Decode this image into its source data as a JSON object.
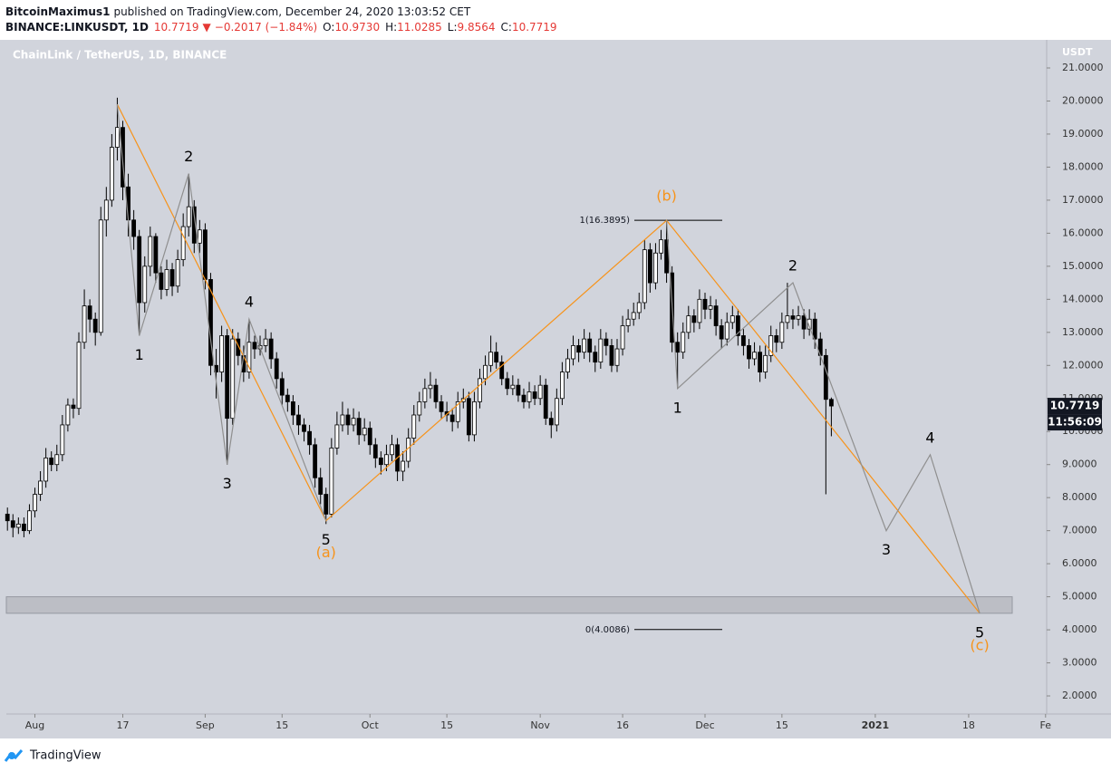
{
  "header": {
    "author": "BitcoinMaximus1",
    "published": "published on TradingView.com, December 24, 2020 13:03:52 CET",
    "symbol": "BINANCE:LINKUSDT, 1D",
    "last": "10.7719",
    "arrow": "▼",
    "change": "−0.2017 (−1.84%)",
    "ohlc": [
      {
        "label": "O:",
        "value": "10.9730"
      },
      {
        "label": "H:",
        "value": "11.0285"
      },
      {
        "label": "L:",
        "value": "9.8564"
      },
      {
        "label": "C:",
        "value": "10.7719"
      }
    ]
  },
  "footer": {
    "brand": "TradingView"
  },
  "chart_data": {
    "type": "candlestick",
    "title": "ChainLink / TetherUS, 1D, BINANCE",
    "y_axis_label": "USDT",
    "grid": false,
    "up_color": "#ffffff",
    "down_color": "#000000",
    "background": "#d1d4dc",
    "xlim": [
      -0.2,
      189.2
    ],
    "ylim": [
      1.48,
      21.85
    ],
    "xticks": [
      {
        "value": 5,
        "label": "Aug"
      },
      {
        "value": 21,
        "label": "17"
      },
      {
        "value": 36,
        "label": "Sep"
      },
      {
        "value": 50,
        "label": "15"
      },
      {
        "value": 66,
        "label": "Oct"
      },
      {
        "value": 80,
        "label": "15"
      },
      {
        "value": 97,
        "label": "Nov"
      },
      {
        "value": 112,
        "label": "16"
      },
      {
        "value": 127,
        "label": "Dec"
      },
      {
        "value": 141,
        "label": "15"
      },
      {
        "value": 158,
        "label": "2021"
      },
      {
        "value": 175,
        "label": "18"
      },
      {
        "value": 189,
        "label": "Fe"
      }
    ],
    "yticks": [
      {
        "value": 21,
        "label": "21.0000"
      },
      {
        "value": 20,
        "label": "20.0000"
      },
      {
        "value": 19,
        "label": "19.0000"
      },
      {
        "value": 18,
        "label": "18.0000"
      },
      {
        "value": 17,
        "label": "17.0000"
      },
      {
        "value": 16,
        "label": "16.0000"
      },
      {
        "value": 15,
        "label": "15.0000"
      },
      {
        "value": 14,
        "label": "14.0000"
      },
      {
        "value": 13,
        "label": "13.0000"
      },
      {
        "value": 12,
        "label": "12.0000"
      },
      {
        "value": 11,
        "label": "11.0000"
      },
      {
        "value": 10,
        "label": "10.0000"
      },
      {
        "value": 9,
        "label": "9.0000"
      },
      {
        "value": 8,
        "label": "8.0000"
      },
      {
        "value": 7,
        "label": "7.0000"
      },
      {
        "value": 6,
        "label": "6.0000"
      },
      {
        "value": 5,
        "label": "5.0000"
      },
      {
        "value": 4,
        "label": "4.0000"
      },
      {
        "value": 3,
        "label": "3.0000"
      },
      {
        "value": 2,
        "label": "2.0000"
      }
    ],
    "x": [
      0,
      1,
      2,
      3,
      4,
      5,
      6,
      7,
      8,
      9,
      10,
      11,
      12,
      13,
      14,
      15,
      16,
      17,
      18,
      19,
      20,
      21,
      22,
      23,
      24,
      25,
      26,
      27,
      28,
      29,
      30,
      31,
      32,
      33,
      34,
      35,
      36,
      37,
      38,
      39,
      40,
      41,
      42,
      43,
      44,
      45,
      46,
      47,
      48,
      49,
      50,
      51,
      52,
      53,
      54,
      55,
      56,
      57,
      58,
      59,
      60,
      61,
      62,
      63,
      64,
      65,
      66,
      67,
      68,
      69,
      70,
      71,
      72,
      73,
      74,
      75,
      76,
      77,
      78,
      79,
      80,
      81,
      82,
      83,
      84,
      85,
      86,
      87,
      88,
      89,
      90,
      91,
      92,
      93,
      94,
      95,
      96,
      97,
      98,
      99,
      100,
      101,
      102,
      103,
      104,
      105,
      106,
      107,
      108,
      109,
      110,
      111,
      112,
      113,
      114,
      115,
      116,
      117,
      118,
      119,
      120,
      121,
      122,
      123,
      124,
      125,
      126,
      127,
      128,
      129,
      130,
      131,
      132,
      133,
      134,
      135,
      136,
      137,
      138,
      139,
      140,
      141,
      142,
      143,
      144,
      145,
      146,
      147,
      148,
      149,
      150
    ],
    "candles": [
      [
        7.5,
        7.7,
        7.0,
        7.3
      ],
      [
        7.3,
        7.5,
        6.8,
        7.1
      ],
      [
        7.1,
        7.4,
        6.9,
        7.2
      ],
      [
        7.2,
        7.4,
        6.8,
        7.0
      ],
      [
        7.0,
        7.8,
        6.9,
        7.6
      ],
      [
        7.6,
        8.3,
        7.4,
        8.1
      ],
      [
        8.1,
        8.8,
        7.9,
        8.5
      ],
      [
        8.5,
        9.5,
        8.3,
        9.2
      ],
      [
        9.2,
        9.4,
        8.8,
        9.0
      ],
      [
        9.0,
        9.6,
        8.8,
        9.3
      ],
      [
        9.3,
        10.5,
        9.1,
        10.2
      ],
      [
        10.2,
        11.0,
        10.0,
        10.8
      ],
      [
        10.8,
        11.0,
        10.4,
        10.7
      ],
      [
        10.7,
        13.0,
        10.5,
        12.7
      ],
      [
        12.7,
        14.3,
        12.5,
        13.8
      ],
      [
        13.8,
        14.0,
        13.0,
        13.4
      ],
      [
        13.4,
        13.6,
        12.6,
        13.0
      ],
      [
        13.0,
        16.8,
        12.9,
        16.4
      ],
      [
        16.4,
        17.4,
        15.9,
        17.0
      ],
      [
        17.0,
        19.0,
        16.8,
        18.6
      ],
      [
        18.6,
        20.1,
        18.2,
        19.2
      ],
      [
        19.2,
        19.4,
        17.0,
        17.4
      ],
      [
        17.4,
        17.8,
        15.9,
        16.4
      ],
      [
        16.4,
        16.7,
        15.5,
        15.9
      ],
      [
        15.9,
        16.1,
        12.9,
        13.9
      ],
      [
        13.9,
        15.3,
        13.6,
        15.0
      ],
      [
        15.0,
        16.2,
        14.7,
        15.9
      ],
      [
        15.9,
        16.0,
        14.5,
        14.8
      ],
      [
        14.8,
        15.0,
        14.0,
        14.3
      ],
      [
        14.3,
        15.2,
        14.1,
        14.9
      ],
      [
        14.9,
        15.1,
        14.1,
        14.4
      ],
      [
        14.4,
        15.5,
        14.2,
        15.2
      ],
      [
        15.2,
        16.6,
        15.0,
        16.2
      ],
      [
        16.2,
        17.8,
        15.9,
        16.8
      ],
      [
        16.8,
        17.0,
        15.4,
        15.7
      ],
      [
        15.7,
        16.4,
        15.4,
        16.1
      ],
      [
        16.1,
        16.3,
        14.3,
        14.6
      ],
      [
        14.6,
        14.8,
        11.7,
        12.0
      ],
      [
        12.0,
        12.5,
        11.0,
        11.8
      ],
      [
        11.8,
        13.2,
        11.5,
        12.9
      ],
      [
        12.9,
        13.1,
        9.0,
        10.4
      ],
      [
        10.4,
        13.1,
        10.2,
        12.8
      ],
      [
        12.8,
        13.0,
        12.0,
        12.3
      ],
      [
        12.3,
        12.6,
        11.5,
        11.8
      ],
      [
        11.8,
        13.4,
        11.6,
        12.7
      ],
      [
        12.7,
        12.9,
        12.2,
        12.5
      ],
      [
        12.5,
        12.9,
        12.3,
        12.6
      ],
      [
        12.6,
        13.1,
        12.4,
        12.8
      ],
      [
        12.8,
        13.0,
        11.9,
        12.2
      ],
      [
        12.2,
        12.4,
        11.3,
        11.6
      ],
      [
        11.6,
        11.8,
        10.8,
        11.1
      ],
      [
        11.1,
        11.3,
        10.6,
        10.9
      ],
      [
        10.9,
        11.1,
        10.2,
        10.5
      ],
      [
        10.5,
        10.8,
        9.9,
        10.2
      ],
      [
        10.2,
        10.4,
        9.7,
        10.0
      ],
      [
        10.0,
        10.2,
        9.3,
        9.6
      ],
      [
        9.6,
        9.8,
        8.3,
        8.6
      ],
      [
        8.6,
        8.9,
        7.8,
        8.1
      ],
      [
        8.1,
        8.3,
        7.2,
        7.5
      ],
      [
        7.5,
        9.8,
        7.4,
        9.5
      ],
      [
        9.5,
        10.6,
        9.3,
        10.2
      ],
      [
        10.2,
        10.9,
        10.0,
        10.5
      ],
      [
        10.5,
        10.7,
        9.9,
        10.2
      ],
      [
        10.2,
        10.7,
        10.0,
        10.4
      ],
      [
        10.4,
        10.6,
        9.6,
        9.9
      ],
      [
        9.9,
        10.4,
        9.7,
        10.1
      ],
      [
        10.1,
        10.3,
        9.3,
        9.6
      ],
      [
        9.6,
        9.8,
        8.9,
        9.2
      ],
      [
        9.2,
        9.4,
        8.7,
        9.0
      ],
      [
        9.0,
        9.6,
        8.8,
        9.3
      ],
      [
        9.3,
        9.9,
        9.1,
        9.6
      ],
      [
        9.6,
        9.8,
        8.5,
        8.8
      ],
      [
        8.8,
        9.4,
        8.5,
        9.1
      ],
      [
        9.1,
        10.1,
        8.9,
        9.8
      ],
      [
        9.8,
        10.8,
        9.6,
        10.5
      ],
      [
        10.5,
        11.2,
        10.3,
        10.9
      ],
      [
        10.9,
        11.6,
        10.7,
        11.3
      ],
      [
        11.3,
        11.8,
        11.0,
        11.4
      ],
      [
        11.4,
        11.6,
        10.7,
        10.9
      ],
      [
        10.9,
        11.1,
        10.4,
        10.6
      ],
      [
        10.6,
        10.9,
        10.3,
        10.5
      ],
      [
        10.5,
        10.7,
        10.0,
        10.3
      ],
      [
        10.3,
        11.2,
        10.1,
        10.9
      ],
      [
        10.9,
        11.3,
        10.7,
        11.0
      ],
      [
        11.0,
        11.2,
        9.7,
        9.9
      ],
      [
        9.9,
        11.2,
        9.7,
        10.9
      ],
      [
        10.9,
        11.9,
        10.7,
        11.6
      ],
      [
        11.6,
        12.3,
        11.4,
        12.0
      ],
      [
        12.0,
        12.9,
        11.8,
        12.4
      ],
      [
        12.4,
        12.7,
        11.9,
        12.1
      ],
      [
        12.1,
        12.3,
        11.4,
        11.6
      ],
      [
        11.6,
        11.8,
        11.1,
        11.3
      ],
      [
        11.3,
        11.7,
        11.1,
        11.4
      ],
      [
        11.4,
        11.6,
        10.9,
        11.1
      ],
      [
        11.1,
        11.3,
        10.7,
        10.9
      ],
      [
        10.9,
        11.5,
        10.7,
        11.2
      ],
      [
        11.2,
        11.4,
        10.8,
        11.0
      ],
      [
        11.0,
        11.7,
        10.8,
        11.4
      ],
      [
        11.4,
        11.6,
        10.2,
        10.4
      ],
      [
        10.4,
        10.6,
        9.8,
        10.2
      ],
      [
        10.2,
        11.3,
        10.0,
        11.0
      ],
      [
        11.0,
        12.1,
        10.8,
        11.8
      ],
      [
        11.8,
        12.5,
        11.6,
        12.2
      ],
      [
        12.2,
        12.9,
        12.0,
        12.6
      ],
      [
        12.6,
        12.8,
        12.1,
        12.4
      ],
      [
        12.4,
        13.1,
        12.2,
        12.8
      ],
      [
        12.8,
        13.0,
        12.1,
        12.4
      ],
      [
        12.4,
        12.6,
        11.8,
        12.1
      ],
      [
        12.1,
        13.1,
        11.9,
        12.8
      ],
      [
        12.8,
        13.0,
        12.3,
        12.6
      ],
      [
        12.6,
        12.8,
        11.8,
        12.0
      ],
      [
        12.0,
        12.8,
        11.8,
        12.5
      ],
      [
        12.5,
        13.5,
        12.3,
        13.2
      ],
      [
        13.2,
        13.7,
        13.0,
        13.4
      ],
      [
        13.4,
        13.9,
        13.2,
        13.6
      ],
      [
        13.6,
        14.2,
        13.4,
        13.9
      ],
      [
        13.9,
        15.8,
        13.7,
        15.5
      ],
      [
        15.5,
        15.7,
        14.2,
        14.5
      ],
      [
        14.5,
        15.7,
        14.3,
        15.4
      ],
      [
        15.4,
        16.1,
        15.2,
        15.8
      ],
      [
        15.8,
        16.3895,
        14.5,
        14.8
      ],
      [
        14.8,
        15.0,
        12.4,
        12.7
      ],
      [
        12.7,
        13.0,
        11.3,
        12.4
      ],
      [
        12.4,
        13.3,
        12.2,
        13.0
      ],
      [
        13.0,
        13.8,
        12.8,
        13.5
      ],
      [
        13.5,
        13.7,
        13.0,
        13.3
      ],
      [
        13.3,
        14.3,
        13.1,
        14.0
      ],
      [
        14.0,
        14.2,
        13.4,
        13.7
      ],
      [
        13.7,
        14.1,
        13.4,
        13.8
      ],
      [
        13.8,
        14.0,
        12.9,
        13.2
      ],
      [
        13.2,
        13.4,
        12.5,
        12.8
      ],
      [
        12.8,
        13.6,
        12.6,
        13.3
      ],
      [
        13.3,
        13.8,
        13.1,
        13.5
      ],
      [
        13.5,
        13.7,
        12.6,
        12.9
      ],
      [
        12.9,
        13.1,
        12.3,
        12.6
      ],
      [
        12.6,
        12.8,
        11.9,
        12.2
      ],
      [
        12.2,
        12.7,
        12.0,
        12.4
      ],
      [
        12.4,
        12.6,
        11.5,
        11.8
      ],
      [
        11.8,
        12.6,
        11.6,
        12.3
      ],
      [
        12.3,
        13.2,
        12.1,
        12.9
      ],
      [
        12.9,
        13.1,
        12.4,
        12.7
      ],
      [
        12.7,
        13.6,
        12.5,
        13.3
      ],
      [
        13.3,
        14.5,
        13.1,
        13.5
      ],
      [
        13.5,
        13.7,
        13.1,
        13.4
      ],
      [
        13.4,
        13.8,
        13.2,
        13.5
      ],
      [
        13.5,
        13.7,
        12.8,
        13.1
      ],
      [
        13.1,
        13.7,
        12.9,
        13.4
      ],
      [
        13.4,
        13.6,
        12.5,
        12.8
      ],
      [
        12.8,
        13.0,
        12.0,
        12.3
      ],
      [
        12.3,
        12.5,
        8.1,
        10.973
      ],
      [
        10.973,
        11.0285,
        9.8564,
        10.7719
      ]
    ],
    "waves": [
      {
        "color": "#f7931a",
        "x": [
          20,
          58,
          120,
          177
        ],
        "y": [
          19.9,
          7.3,
          16.3895,
          4.5
        ],
        "labels": [
          null,
          "(a)",
          "(b)",
          "(c)"
        ]
      },
      {
        "color": "#8f8f8f",
        "x": [
          20,
          24,
          33,
          40,
          44,
          58
        ],
        "y": [
          19.9,
          12.9,
          17.8,
          9.0,
          13.4,
          7.3
        ],
        "labels": [
          null,
          "1",
          "2",
          "3",
          "4",
          "5"
        ]
      },
      {
        "color": "#8f8f8f",
        "x": [
          120,
          122,
          143,
          160,
          168,
          177
        ],
        "y": [
          16.3895,
          11.3,
          14.5,
          7.0,
          9.3,
          4.5
        ],
        "labels": [
          null,
          "1",
          "2",
          "3",
          "4",
          "5"
        ]
      }
    ],
    "fib_levels": [
      {
        "label": "1(16.3895)",
        "value": 16.3895
      },
      {
        "label": "0(4.0086)",
        "value": 4.0086
      }
    ],
    "zone": [
      4.5,
      5.0
    ],
    "last_price": 10.7719,
    "countdown": "11:56:09"
  }
}
